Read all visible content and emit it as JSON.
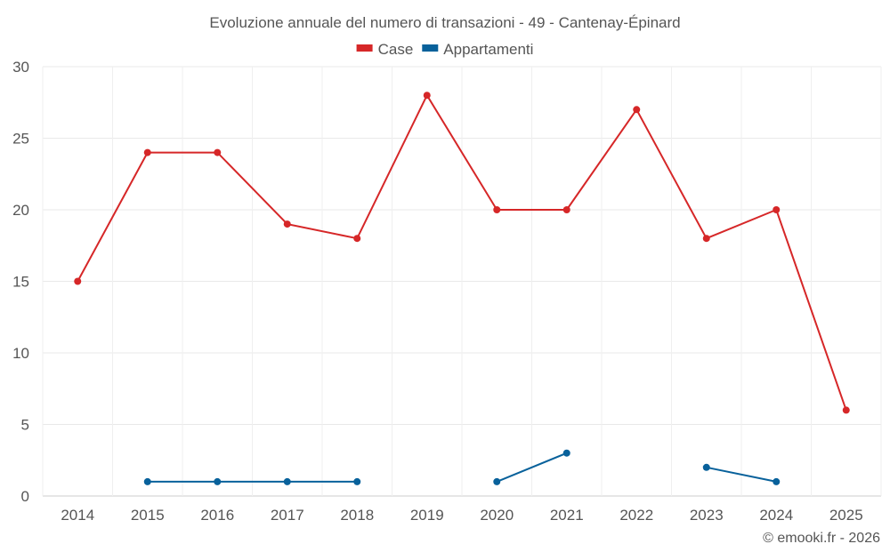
{
  "chart_data": {
    "type": "line",
    "title": "Evoluzione annuale del numero di transazioni - 49 - Cantenay-Épinard",
    "xlabel": "",
    "ylabel": "",
    "categories": [
      "2014",
      "2015",
      "2016",
      "2017",
      "2018",
      "2019",
      "2020",
      "2021",
      "2022",
      "2023",
      "2024",
      "2025"
    ],
    "ylim": [
      0,
      30
    ],
    "yticks": [
      0,
      5,
      10,
      15,
      20,
      25,
      30
    ],
    "grid": true,
    "legend_position": "top-center",
    "series": [
      {
        "name": "Case",
        "color": "#d62728",
        "values": [
          15,
          24,
          24,
          19,
          18,
          28,
          20,
          20,
          27,
          18,
          20,
          6
        ]
      },
      {
        "name": "Appartamenti",
        "color": "#08619b",
        "values": [
          null,
          1,
          1,
          1,
          1,
          null,
          1,
          3,
          null,
          2,
          1,
          null
        ]
      }
    ]
  },
  "credit": "© emooki.fr - 2026"
}
